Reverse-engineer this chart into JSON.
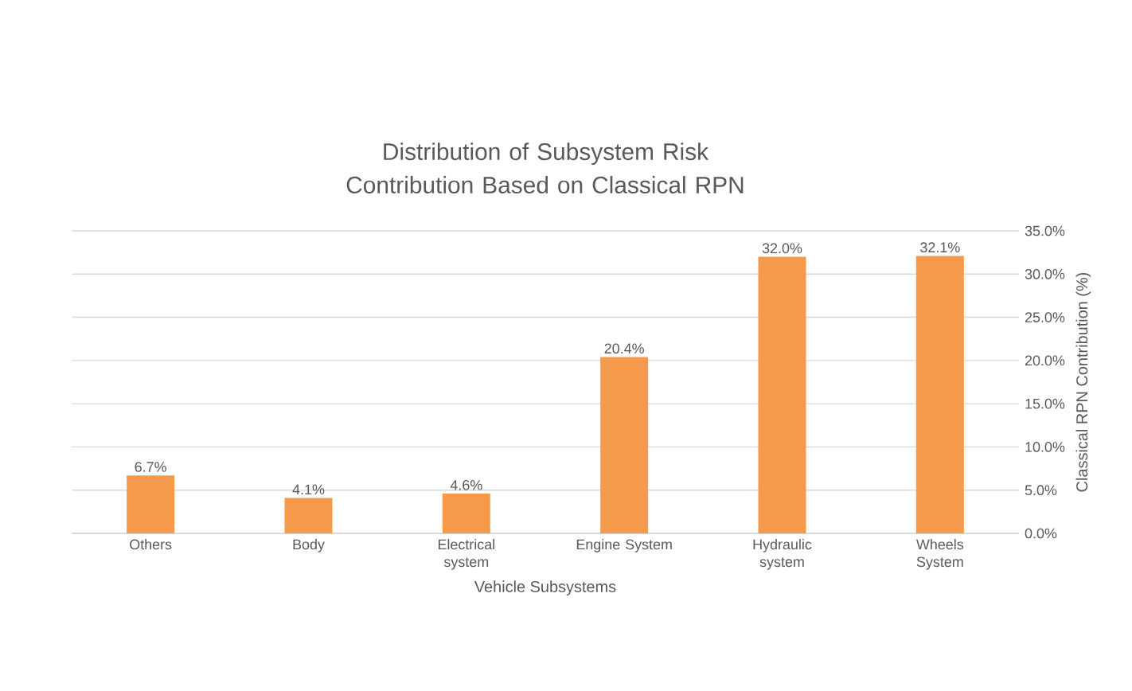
{
  "chart_data": {
    "type": "bar",
    "title": "Distribution of Subsystem Risk Contribution Based on Classical RPN",
    "xlabel": "Vehicle Subsystems",
    "ylabel": "Classical RPN Contribution (%)",
    "categories": [
      "Others",
      "Body",
      "Electrical system",
      "Engine System",
      "Hydraulic system",
      "Wheels System"
    ],
    "values": [
      6.7,
      4.1,
      4.6,
      20.4,
      32.0,
      32.1
    ],
    "value_labels": [
      "6.7%",
      "4.1%",
      "4.6%",
      "20.4%",
      "32.0%",
      "32.1%"
    ],
    "color": "#f59a4b",
    "ylim": [
      0,
      35
    ],
    "yticks": [
      {
        "value": 0,
        "label": "0.0%"
      },
      {
        "value": 5,
        "label": "5.0%"
      },
      {
        "value": 10,
        "label": "10.0%"
      },
      {
        "value": 15,
        "label": "15.0%"
      },
      {
        "value": 20,
        "label": "20.0%"
      },
      {
        "value": 25,
        "label": "25.0%"
      },
      {
        "value": 30,
        "label": "30.0%"
      },
      {
        "value": 35,
        "label": "35.0%"
      }
    ],
    "grid": "y"
  }
}
